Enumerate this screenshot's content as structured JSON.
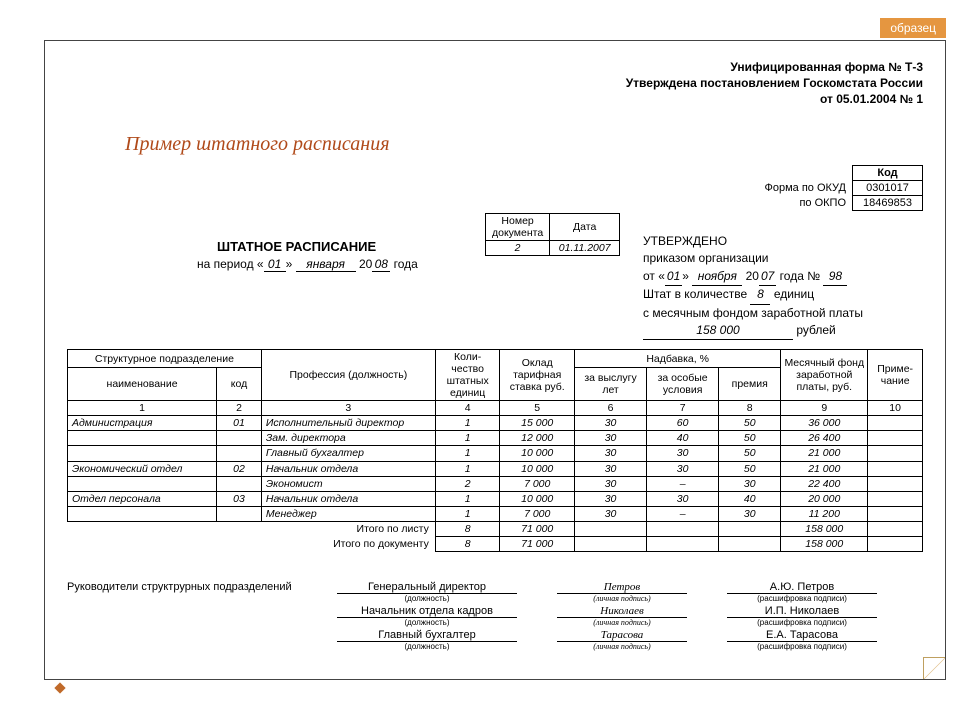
{
  "badge": "образец",
  "header": {
    "line1": "Унифицированная форма № Т-3",
    "line2": "Утверждена постановлением Госкомстата России",
    "line3": "от 05.01.2004 № 1"
  },
  "title_italic": "Пример штатного расписания",
  "codes": {
    "kod_label": "Код",
    "okud_label": "Форма по ОКУД",
    "okud": "0301017",
    "okpo_label": "по ОКПО",
    "okpo": "18469853"
  },
  "docnum": {
    "h1": "Номер документа",
    "h2": "Дата",
    "num": "2",
    "date": "01.11.2007"
  },
  "sht_title": "ШТАТНОЕ РАСПИСАНИЕ",
  "period": {
    "prefix": "на период «",
    "day": "01",
    "mid1": "» ",
    "month": "января",
    "mid2": " 20",
    "year": "08",
    "suffix": " года"
  },
  "approve": {
    "l1": "УТВЕРЖДЕНО",
    "l2": "приказом организации",
    "l3a": "от «",
    "l3_day": "01",
    "l3b": "» ",
    "l3_month": "ноября",
    "l3c": " 20",
    "l3_year": "07",
    "l3d": " года № ",
    "l3_num": "98",
    "l4a": "Штат в количестве ",
    "l4_units": "8",
    "l4b": " единиц",
    "l5": "с месячным фондом заработной платы",
    "l6_sum": "158 000",
    "l6b": " рублей"
  },
  "table": {
    "headers": {
      "dept": "Структурное подразделение",
      "name": "наименование",
      "code": "код",
      "prof": "Профессия (должность)",
      "qty": "Коли-чество штатных единиц",
      "salary": "Оклад тарифная ставка руб.",
      "bonus": "Надбавка, %",
      "b1": "за выслугу лет",
      "b2": "за особые условия",
      "b3": "премия",
      "fund": "Месячный фонд заработной платы, руб.",
      "note": "Приме-чание"
    },
    "colnums": [
      "1",
      "2",
      "3",
      "4",
      "5",
      "6",
      "7",
      "8",
      "9",
      "10"
    ],
    "rows": [
      {
        "dept": "Администрация",
        "code": "01",
        "prof": "Исполнительный директор",
        "qty": "1",
        "salary": "15 000",
        "b1": "30",
        "b2": "60",
        "b3": "50",
        "fund": "36 000",
        "note": ""
      },
      {
        "dept": "",
        "code": "",
        "prof": "Зам. директора",
        "qty": "1",
        "salary": "12 000",
        "b1": "30",
        "b2": "40",
        "b3": "50",
        "fund": "26 400",
        "note": ""
      },
      {
        "dept": "",
        "code": "",
        "prof": "Главный бухгалтер",
        "qty": "1",
        "salary": "10 000",
        "b1": "30",
        "b2": "30",
        "b3": "50",
        "fund": "21 000",
        "note": ""
      },
      {
        "dept": "Экономический отдел",
        "code": "02",
        "prof": "Начальник отдела",
        "qty": "1",
        "salary": "10 000",
        "b1": "30",
        "b2": "30",
        "b3": "50",
        "fund": "21 000",
        "note": ""
      },
      {
        "dept": "",
        "code": "",
        "prof": "Экономист",
        "qty": "2",
        "salary": "7 000",
        "b1": "30",
        "b2": "–",
        "b3": "30",
        "fund": "22 400",
        "note": ""
      },
      {
        "dept": "Отдел персонала",
        "code": "03",
        "prof": "Начальник отдела",
        "qty": "1",
        "salary": "10 000",
        "b1": "30",
        "b2": "30",
        "b3": "40",
        "fund": "20 000",
        "note": ""
      },
      {
        "dept": "",
        "code": "",
        "prof": "Менеджер",
        "qty": "1",
        "salary": "7 000",
        "b1": "30",
        "b2": "–",
        "b3": "30",
        "fund": "11 200",
        "note": ""
      }
    ],
    "totals": [
      {
        "label": "Итого по листу",
        "qty": "8",
        "salary": "71 000",
        "fund": "158 000"
      },
      {
        "label": "Итого по документу",
        "qty": "8",
        "salary": "71 000",
        "fund": "158 000"
      }
    ]
  },
  "sig": {
    "heading": "Руководители структрурных подразделений",
    "rows": [
      {
        "pos": "Генеральный директор",
        "sign": "Петров",
        "name": "А.Ю. Петров"
      },
      {
        "pos": "Начальник отдела кадров",
        "sign": "Николаев",
        "name": "И.П. Николаев"
      },
      {
        "pos": "Главный бухгалтер",
        "sign": "Тарасова",
        "name": "Е.А. Тарасова"
      }
    ],
    "sub_pos": "(должность)",
    "sub_sign": "(личная подпись)",
    "sub_name": "(расшифровка подписи)"
  }
}
